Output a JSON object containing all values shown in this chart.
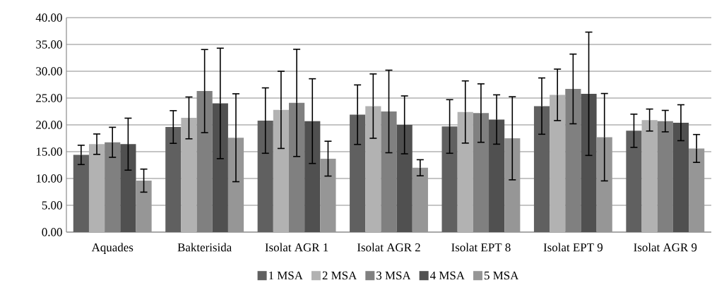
{
  "chart_data": {
    "type": "bar",
    "categories": [
      "Aquades",
      "Bakterisida",
      "Isolat AGR 1",
      "Isolat AGR 2",
      "Isolat EPT 8",
      "Isolat EPT 9",
      "Isolat AGR 9"
    ],
    "series": [
      {
        "name": "1 MSA",
        "color": "#606060",
        "values": [
          14.4,
          19.6,
          20.8,
          21.9,
          19.7,
          23.5,
          18.9
        ],
        "errors": [
          1.8,
          3.05,
          6.1,
          5.55,
          5.0,
          5.25,
          3.1
        ]
      },
      {
        "name": "2 MSA",
        "color": "#b2b2b2",
        "values": [
          16.4,
          21.3,
          22.8,
          23.5,
          22.4,
          25.6,
          20.9
        ],
        "errors": [
          1.9,
          3.9,
          7.2,
          6.0,
          5.8,
          4.8,
          2.05
        ]
      },
      {
        "name": "3 MSA",
        "color": "#808080",
        "values": [
          16.75,
          26.3,
          24.1,
          22.5,
          22.2,
          26.7,
          20.7
        ],
        "errors": [
          2.8,
          7.75,
          10.0,
          7.7,
          5.45,
          6.5,
          2.0
        ]
      },
      {
        "name": "4 MSA",
        "color": "#505050",
        "values": [
          16.4,
          24.0,
          20.7,
          20.0,
          21.0,
          25.8,
          20.4
        ],
        "errors": [
          4.85,
          10.3,
          7.9,
          5.4,
          4.6,
          11.5,
          3.35
        ]
      },
      {
        "name": "5 MSA",
        "color": "#969696",
        "values": [
          9.6,
          17.6,
          13.7,
          12.0,
          17.5,
          17.7,
          15.6
        ],
        "errors": [
          2.15,
          8.2,
          3.25,
          1.5,
          7.75,
          8.15,
          2.6
        ]
      }
    ],
    "ylim": [
      0,
      40
    ],
    "yticks": [
      {
        "value": 0,
        "label": "0.00"
      },
      {
        "value": 5,
        "label": "5.00"
      },
      {
        "value": 10,
        "label": "10.00"
      },
      {
        "value": 15,
        "label": "15.00"
      },
      {
        "value": 20,
        "label": "20.00"
      },
      {
        "value": 25,
        "label": "25.00"
      },
      {
        "value": 30,
        "label": "30.00"
      },
      {
        "value": 35,
        "label": "35.00"
      },
      {
        "value": 40,
        "label": "40.00"
      }
    ],
    "grid": "y",
    "legend": "bottom"
  }
}
